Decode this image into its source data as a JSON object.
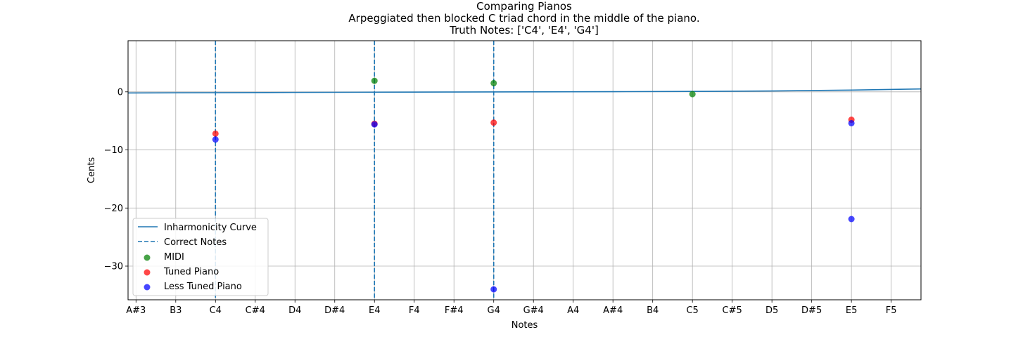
{
  "chart_data": {
    "type": "scatter",
    "title": "Comparing Pianos",
    "subtitle": "Arpeggiated then blocked C triad chord in the middle of the piano.",
    "subtitle2": "Truth Notes: ['C4', 'E4', 'G4']",
    "xlabel": "Notes",
    "ylabel": "Cents",
    "x_ticks": [
      "A#3",
      "B3",
      "C4",
      "C#4",
      "D4",
      "D#4",
      "E4",
      "F4",
      "F#4",
      "G4",
      "G#4",
      "A4",
      "A#4",
      "B4",
      "C5",
      "C#5",
      "D5",
      "D#5",
      "E5",
      "F5"
    ],
    "xlim": [
      -0.2,
      19.75
    ],
    "ylim": [
      -35.8,
      8.8
    ],
    "y_ticks": [
      0,
      -10,
      -20,
      -30
    ],
    "grid": true,
    "legend_position": "lower-left",
    "inharmonicity_curve": {
      "name": "Inharmonicity Curve",
      "color": "#1f77b4",
      "x": [
        -0.2,
        2,
        4,
        6,
        8,
        10,
        12,
        14,
        16,
        18,
        19.75
      ],
      "y": [
        -0.2,
        -0.15,
        -0.1,
        -0.06,
        -0.03,
        0.0,
        0.03,
        0.07,
        0.15,
        0.3,
        0.5
      ]
    },
    "correct_notes": {
      "name": "Correct Notes",
      "color": "#1f77b4",
      "x": [
        "C4",
        "E4",
        "G4"
      ]
    },
    "series": [
      {
        "name": "MIDI",
        "color": "#008000",
        "points": [
          {
            "x": "E4",
            "y": 1.9
          },
          {
            "x": "G4",
            "y": 1.5
          },
          {
            "x": "C5",
            "y": -0.4
          }
        ]
      },
      {
        "name": "Tuned Piano",
        "color": "#ff0000",
        "points": [
          {
            "x": "C4",
            "y": -7.2
          },
          {
            "x": "E4",
            "y": -5.5
          },
          {
            "x": "G4",
            "y": -5.3
          },
          {
            "x": "E5",
            "y": -4.8
          }
        ]
      },
      {
        "name": "Less Tuned Piano",
        "color": "#0000ff",
        "points": [
          {
            "x": "C4",
            "y": -8.2
          },
          {
            "x": "E4",
            "y": -5.6
          },
          {
            "x": "G4",
            "y": -34.0
          },
          {
            "x": "E5",
            "y": -5.4
          },
          {
            "x": "E5",
            "y": -21.9
          }
        ]
      }
    ]
  }
}
